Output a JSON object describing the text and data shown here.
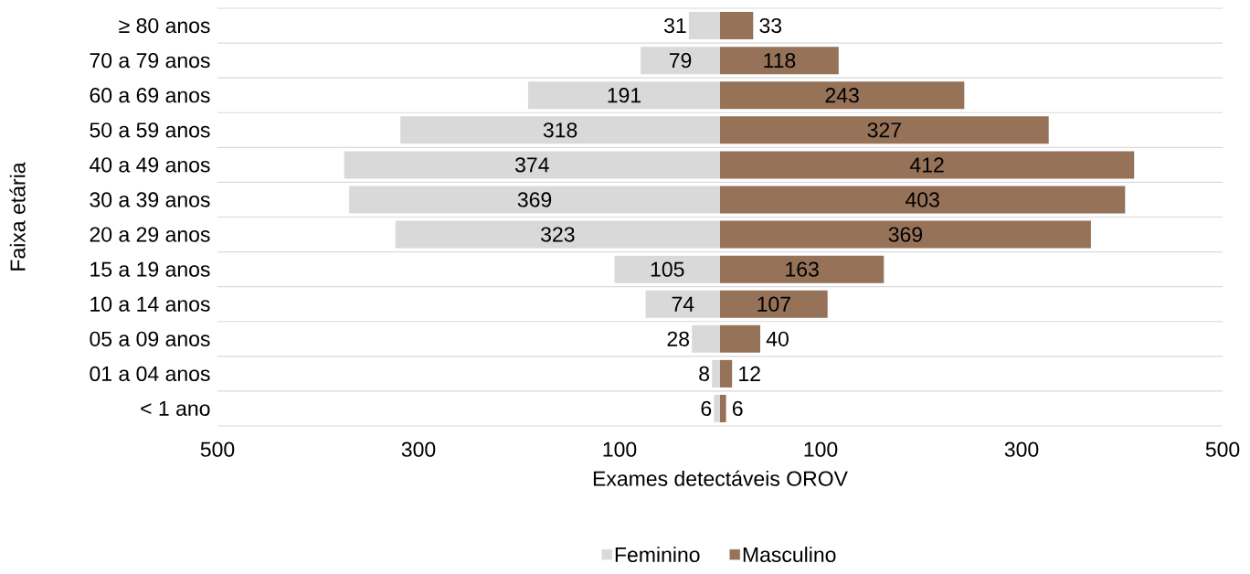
{
  "chart_data": {
    "type": "bar",
    "orientation": "horizontal",
    "xlabel": "Exames detectáveis OROV",
    "ylabel": "Faixa etária",
    "categories": [
      "≥ 80 anos",
      "70 a 79 anos",
      "60 a 69 anos",
      "50 a 59 anos",
      "40 a 49 anos",
      "30 a 39 anos",
      "20 a 29 anos",
      "15 a 19 anos",
      "10 a 14 anos",
      "05 a 09 anos",
      "01 a 04 anos",
      "< 1 ano"
    ],
    "series": [
      {
        "name": "Feminino",
        "color": "#d9d9d9",
        "values": [
          31,
          79,
          191,
          318,
          374,
          369,
          323,
          105,
          74,
          28,
          8,
          6
        ],
        "base": [
          -31,
          -79,
          -191,
          -318,
          -374,
          -369,
          -323,
          -105,
          -74,
          -28,
          -8,
          -6
        ]
      },
      {
        "name": "Masculino",
        "color": "#967259",
        "values": [
          33,
          118,
          243,
          327,
          412,
          403,
          369,
          163,
          107,
          40,
          12,
          6
        ]
      }
    ],
    "xlim": [
      -500,
      500
    ],
    "xticks": [
      {
        "value": -500,
        "label": "500"
      },
      {
        "value": -300,
        "label": "300"
      },
      {
        "value": -100,
        "label": "100"
      },
      {
        "value": 100,
        "label": "100"
      },
      {
        "value": 300,
        "label": "300"
      },
      {
        "value": 500,
        "label": "500"
      }
    ],
    "data_labels": true,
    "grid": "y",
    "legend": "bottom"
  }
}
